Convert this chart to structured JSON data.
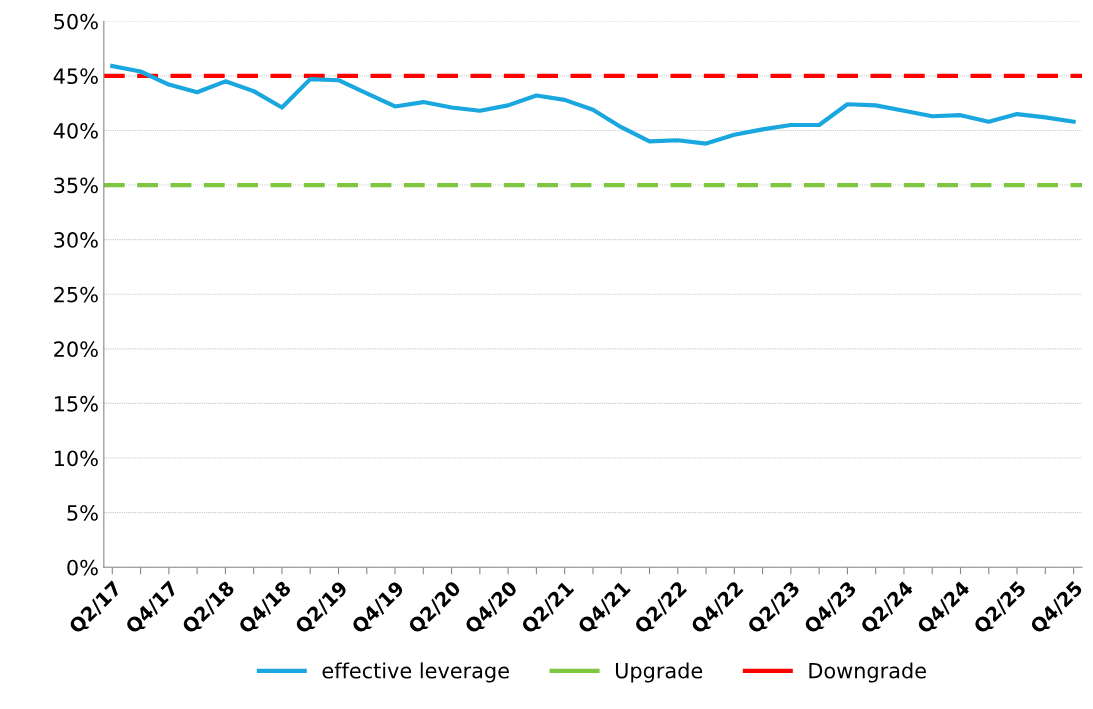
{
  "chart_data": {
    "type": "line",
    "categories": [
      "Q2/17",
      null,
      "Q4/17",
      null,
      "Q2/18",
      null,
      "Q4/18",
      null,
      "Q2/19",
      null,
      "Q4/19",
      null,
      "Q2/20",
      null,
      "Q4/20",
      null,
      "Q2/21",
      null,
      "Q4/21",
      null,
      "Q2/22",
      null,
      "Q4/22",
      null,
      "Q2/23",
      null,
      "Q4/23",
      null,
      "Q2/24",
      null,
      "Q4/24",
      null,
      "Q2/25",
      null,
      "Q4/25"
    ],
    "series": [
      {
        "name": "effective leverage",
        "color": "#1aa7e0",
        "values": [
          45.9,
          45.4,
          44.2,
          43.5,
          44.5,
          43.6,
          42.1,
          44.7,
          44.6,
          43.4,
          42.2,
          42.6,
          42.1,
          41.8,
          42.3,
          43.2,
          42.8,
          41.9,
          40.3,
          39.0,
          39.1,
          38.8,
          39.6,
          40.1,
          40.5,
          40.5,
          42.4,
          42.3,
          41.8,
          41.3,
          41.4,
          40.8,
          41.5,
          41.2,
          40.8
        ]
      }
    ],
    "ref_lines": [
      {
        "axis": "y",
        "value": 35,
        "label": "Upgrade",
        "color": "#7ec540",
        "line_style": "dashed"
      },
      {
        "axis": "y",
        "value": 45,
        "label": "Downgrade",
        "color": "#ff0000",
        "line_style": "dashed"
      }
    ],
    "ylim": [
      0,
      50
    ],
    "yticks": [
      {
        "value": 0,
        "label": "0%"
      },
      {
        "value": 5,
        "label": "5%"
      },
      {
        "value": 10,
        "label": "10%"
      },
      {
        "value": 15,
        "label": "15%"
      },
      {
        "value": 20,
        "label": "20%"
      },
      {
        "value": 25,
        "label": "25%"
      },
      {
        "value": 30,
        "label": "30%"
      },
      {
        "value": 35,
        "label": "35%"
      },
      {
        "value": 40,
        "label": "40%"
      },
      {
        "value": 45,
        "label": "45%"
      },
      {
        "value": 50,
        "label": "50%"
      }
    ],
    "grid": "y",
    "legend": "bottom",
    "marker": "none",
    "line_style": "solid"
  }
}
